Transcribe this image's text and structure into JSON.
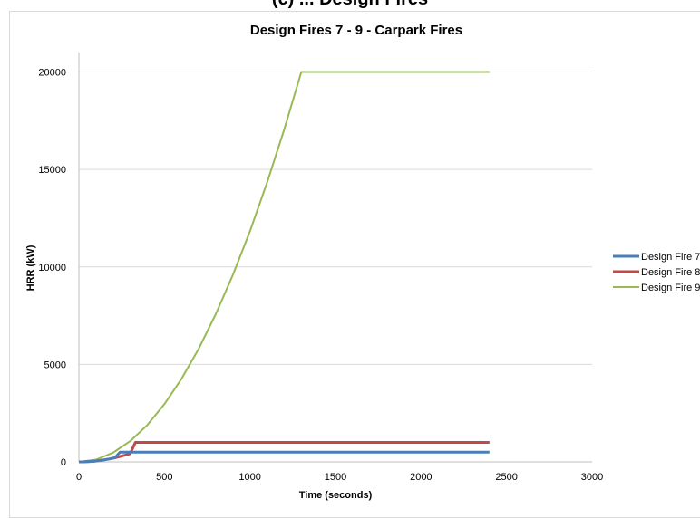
{
  "header_fragment": "(c)    ...    Design Fires",
  "chart_data": {
    "type": "line",
    "title": "Design Fires 7 - 9 - Carpark Fires",
    "xlabel": "Time (seconds)",
    "ylabel": "HRR (kW)",
    "xlim": [
      0,
      3000
    ],
    "ylim": [
      0,
      21000
    ],
    "xticks": [
      0,
      500,
      1000,
      1500,
      2000,
      2500,
      3000
    ],
    "yticks": [
      0,
      5000,
      10000,
      15000,
      20000
    ],
    "grid": "horizontal",
    "legend": "right",
    "series": [
      {
        "name": "Design Fire 7",
        "color": "#4a7ebb",
        "x": [
          0,
          30,
          60,
          90,
          120,
          150,
          180,
          210,
          240,
          2400
        ],
        "y": [
          0,
          4,
          17,
          38,
          68,
          106,
          153,
          208,
          500,
          500
        ]
      },
      {
        "name": "Design Fire 8",
        "color": "#be4b48",
        "x": [
          0,
          30,
          60,
          90,
          120,
          150,
          180,
          210,
          240,
          270,
          300,
          330,
          2400
        ],
        "y": [
          0,
          4,
          17,
          38,
          68,
          106,
          153,
          208,
          272,
          344,
          425,
          1000,
          1000
        ]
      },
      {
        "name": "Design Fire 9",
        "color": "#98b954",
        "x": [
          0,
          100,
          200,
          300,
          400,
          500,
          600,
          700,
          800,
          900,
          1000,
          1100,
          1200,
          1300,
          2400
        ],
        "y": [
          0,
          118,
          473,
          1065,
          1893,
          2958,
          4260,
          5799,
          7574,
          9586,
          11834,
          14319,
          17041,
          20000,
          20000
        ]
      }
    ]
  }
}
